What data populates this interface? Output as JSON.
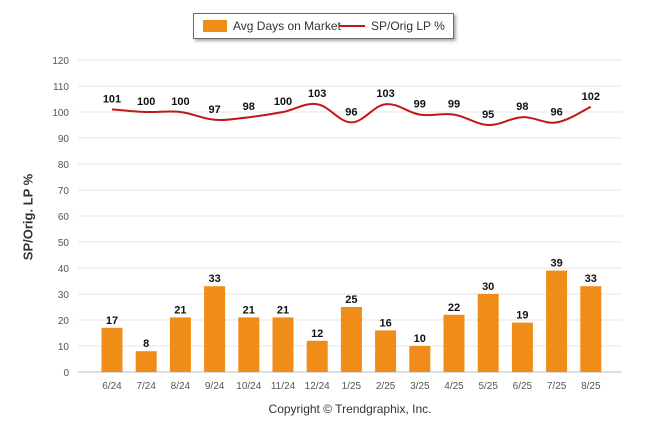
{
  "legend": {
    "bar_label": "Avg Days on Market",
    "line_label": "SP/Orig LP %"
  },
  "copyright": "Copyright © Trendgraphix, Inc.",
  "colors": {
    "bar": "#f08c18",
    "line": "#c21717",
    "grid": "#e4e4e4"
  },
  "chart_data": {
    "type": "bar",
    "categories": [
      "6/24",
      "7/24",
      "8/24",
      "9/24",
      "10/24",
      "11/24",
      "12/24",
      "1/25",
      "2/25",
      "3/25",
      "4/25",
      "5/25",
      "6/25",
      "7/25",
      "8/25"
    ],
    "series": [
      {
        "name": "Avg Days on Market",
        "type": "bar",
        "values": [
          17,
          8,
          21,
          33,
          21,
          21,
          12,
          25,
          16,
          10,
          22,
          30,
          19,
          39,
          33
        ]
      },
      {
        "name": "SP/Orig LP %",
        "type": "line",
        "values": [
          101,
          100,
          100,
          97,
          98,
          100,
          103,
          96,
          103,
          99,
          99,
          95,
          98,
          96,
          102
        ]
      }
    ],
    "ylabel": "SP/Orig. LP %",
    "ylim": [
      0,
      120
    ],
    "yticks": [
      0,
      10,
      20,
      30,
      40,
      50,
      60,
      70,
      80,
      90,
      100,
      110,
      120
    ],
    "grid": true,
    "legend_position": "top-center"
  }
}
